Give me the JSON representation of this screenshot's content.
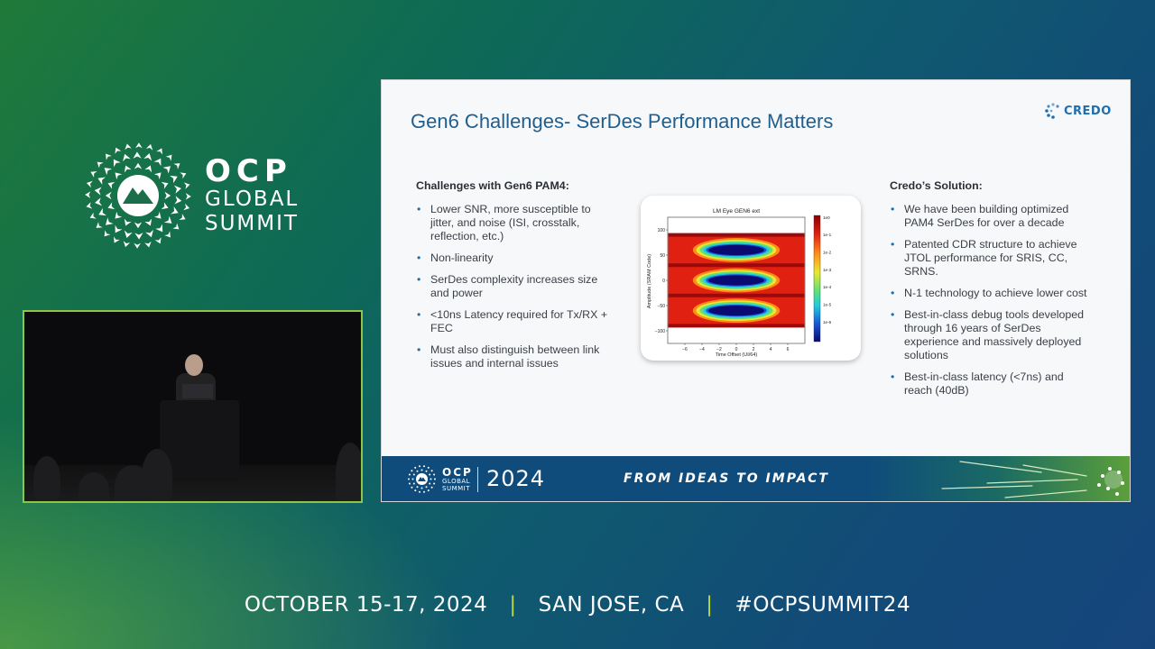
{
  "event_brand": {
    "main": "OCP",
    "line1": "GLOBAL",
    "line2": "SUMMIT"
  },
  "slide": {
    "title": "Gen6 Challenges- SerDes Performance Matters",
    "logo_text": "CREDO",
    "left": {
      "heading": "Challenges with Gen6 PAM4:",
      "items": [
        "Lower SNR, more susceptible to jitter, and noise (ISI, crosstalk, reflection, etc.)",
        "Non-linearity",
        "SerDes complexity increases size and power",
        "<10ns Latency required for Tx/RX + FEC",
        "Must also distinguish between link issues and internal issues"
      ]
    },
    "right": {
      "heading": "Credo’s Solution:",
      "items": [
        "We have been building optimized PAM4 SerDes for over a decade",
        "Patented CDR structure to achieve JTOL performance for SRIS, CC, SRNS.",
        "N-1 technology to achieve lower cost",
        "Best-in-class debug tools developed through 16 years of SerDes experience and massively deployed solutions",
        "Best-in-class latency (<7ns) and reach (40dB)"
      ]
    },
    "footer": {
      "ocp_main": "OCP",
      "ocp_line1": "GLOBAL",
      "ocp_line2": "SUMMIT",
      "year": "2024",
      "tagline": "FROM IDEAS TO IMPACT"
    }
  },
  "event_line": {
    "dates": "OCTOBER 15-17, 2024",
    "location": "SAN JOSE, CA",
    "hashtag": "#OCPSUMMIT24"
  },
  "colors": {
    "accent_green": "#8fc34a",
    "slide_title_blue": "#1f5f8f",
    "footer_blue": "#0f4c7c"
  },
  "chart_data": {
    "type": "heatmap",
    "title": "LM Eye GEN6 ext",
    "xlabel": "Time Offset (UI/64)",
    "ylabel": "Amplitude (SRAM Code)",
    "xlim": [
      -8,
      8
    ],
    "ylim": [
      -125,
      125
    ],
    "xticks": [
      -6,
      -4,
      -2,
      0,
      2,
      4,
      6
    ],
    "yticks": [
      100,
      50,
      0,
      -50,
      -100
    ],
    "colorbar_labels": [
      "1e0",
      "1e-1",
      "1e-2",
      "1e-3",
      "1e-4",
      "1e-5",
      "1e-6"
    ],
    "eye_centers_y": [
      60,
      0,
      -60
    ],
    "eye_half_width_x": 3.5,
    "eye_half_height_y": 10
  }
}
